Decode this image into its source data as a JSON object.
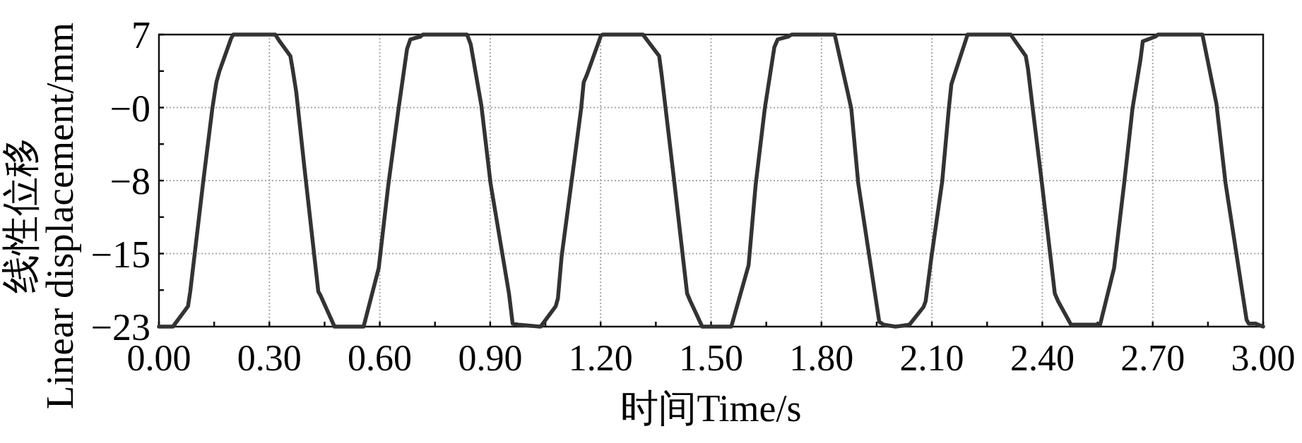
{
  "chart_data": {
    "type": "line",
    "xlabel": "时间Time/s",
    "ylabel": "线性位移\nLinear displacement/mm",
    "x": [
      0,
      0.038,
      0.079,
      0.085,
      0.12,
      0.145,
      0.156,
      0.164,
      0.196,
      0.202,
      0.316,
      0.328,
      0.357,
      0.363,
      0.373,
      0.395,
      0.433,
      0.439,
      0.477,
      0.556,
      0.597,
      0.623,
      0.651,
      0.674,
      0.683,
      0.711,
      0.717,
      0.837,
      0.847,
      0.876,
      0.901,
      0.951,
      0.961,
      0.977,
      1.037,
      1.078,
      1.084,
      1.094,
      1.128,
      1.147,
      1.154,
      1.163,
      1.201,
      1.206,
      1.315,
      1.331,
      1.359,
      1.366,
      1.375,
      1.4,
      1.435,
      1.444,
      1.476,
      1.555,
      1.602,
      1.621,
      1.646,
      1.672,
      1.681,
      1.71,
      1.719,
      1.836,
      1.849,
      1.871,
      1.881,
      1.9,
      1.957,
      1.969,
      2.001,
      2.039,
      2.077,
      2.083,
      2.099,
      2.128,
      2.146,
      2.153,
      2.159,
      2.197,
      2.314,
      2.355,
      2.361,
      2.374,
      2.399,
      2.434,
      2.443,
      2.478,
      2.557,
      2.595,
      2.623,
      2.645,
      2.667,
      2.673,
      2.708,
      2.714,
      2.835,
      2.873,
      2.898,
      2.955,
      2.961,
      2.98,
      3.0
    ],
    "values": [
      -23,
      -23,
      -20.9,
      -19.4,
      -8.2,
      -0.6,
      2.1,
      3.2,
      6.6,
      7,
      7,
      6.3,
      4.8,
      3.5,
      1.1,
      -6.6,
      -19.4,
      -19.8,
      -23,
      -23,
      -17.0,
      -8.5,
      -0.6,
      5.5,
      6.5,
      6.8,
      7,
      7,
      6.0,
      -0.3,
      -8.3,
      -19.6,
      -22.7,
      -22.8,
      -23,
      -20.9,
      -20.1,
      -15.8,
      -6.1,
      -0.6,
      2.1,
      2.9,
      6.9,
      7,
      7,
      6.2,
      4.8,
      2.8,
      -0.1,
      -8.1,
      -19.6,
      -20.4,
      -23,
      -23,
      -16.7,
      -8.5,
      -0.6,
      5.7,
      6.5,
      6.8,
      7,
      7,
      4.8,
      1.1,
      -0.6,
      -8.3,
      -22.5,
      -22.8,
      -23,
      -22.8,
      -21.0,
      -20.4,
      -15.8,
      -8.1,
      -0.6,
      1.9,
      2.6,
      7,
      7,
      4.8,
      3.5,
      -0.6,
      -8.3,
      -19.6,
      -20.4,
      -22.8,
      -22.8,
      -17.0,
      -8.1,
      -0.6,
      4.5,
      6.3,
      6.8,
      7,
      7,
      -0.1,
      -8.3,
      -22.3,
      -22.7,
      -22.7,
      -23
    ],
    "color": "#333333",
    "line_style": "solid",
    "grid": true,
    "xlim": [
      0,
      3
    ],
    "ylim": [
      -23,
      7
    ],
    "xticks": [
      {
        "value": 0,
        "label": "0.00"
      },
      {
        "value": 0.15,
        "label": null
      },
      {
        "value": 0.3,
        "label": "0.30"
      },
      {
        "value": 0.45,
        "label": null
      },
      {
        "value": 0.6,
        "label": "0.60"
      },
      {
        "value": 0.75,
        "label": null
      },
      {
        "value": 0.9,
        "label": "0.90"
      },
      {
        "value": 1.05,
        "label": null
      },
      {
        "value": 1.2,
        "label": "1.20"
      },
      {
        "value": 1.35,
        "label": null
      },
      {
        "value": 1.5,
        "label": "1.50"
      },
      {
        "value": 1.65,
        "label": null
      },
      {
        "value": 1.8,
        "label": "1.80"
      },
      {
        "value": 1.95,
        "label": null
      },
      {
        "value": 2.1,
        "label": "2.10"
      },
      {
        "value": 2.25,
        "label": null
      },
      {
        "value": 2.4,
        "label": "2.40"
      },
      {
        "value": 2.55,
        "label": null
      },
      {
        "value": 2.7,
        "label": "2.70"
      },
      {
        "value": 2.85,
        "label": null
      },
      {
        "value": 3,
        "label": "3.00"
      }
    ],
    "yticks": [
      7,
      {
        "value": 3.25,
        "label": null
      },
      {
        "value": -0.5,
        "label": "−0"
      },
      {
        "value": -4.25,
        "label": null
      },
      {
        "value": -8,
        "label": "−8"
      },
      {
        "value": -11.75,
        "label": null
      },
      {
        "value": -15.5,
        "label": "−15"
      },
      {
        "value": -19.25,
        "label": null
      },
      {
        "value": -23,
        "label": "−23"
      }
    ]
  }
}
